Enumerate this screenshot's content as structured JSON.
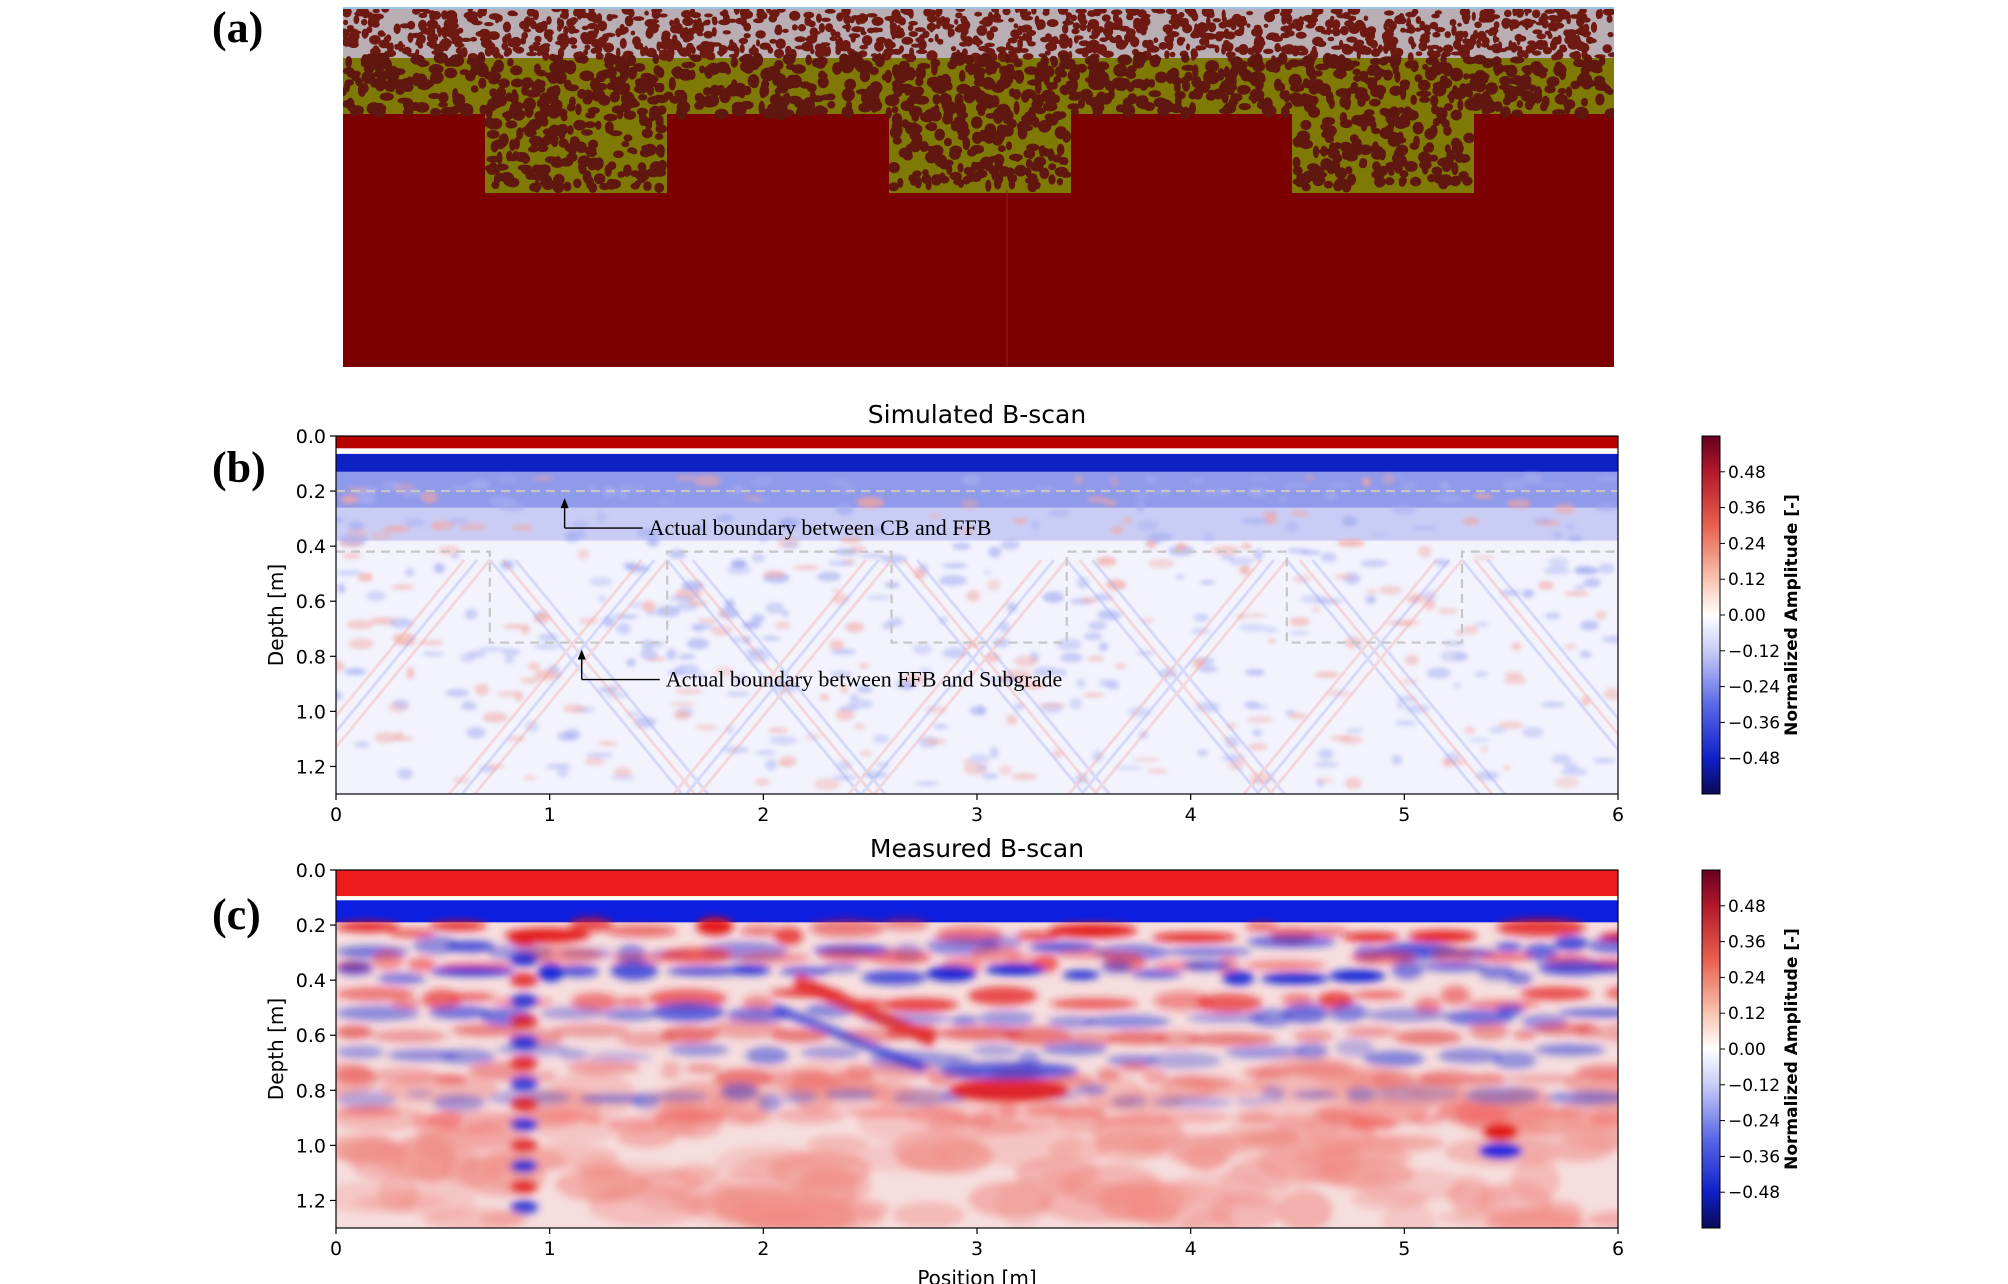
{
  "panels": {
    "a": {
      "label": "(a)"
    },
    "b": {
      "label": "(b)"
    },
    "c": {
      "label": "(c)"
    }
  },
  "colors": {
    "cb_gravel_bg": "#b9aeb4",
    "cb_particle": "#6e1a12",
    "ffb_bg": "#7f7a05",
    "ffb_particle": "#5f1710",
    "subgrade": "#7d0000",
    "positive": "#b40000",
    "negative": "#0b1fbf"
  },
  "model_section": {
    "layers": [
      "CB",
      "FFB",
      "Subgrade"
    ],
    "width_m": 6.0,
    "surface_layer_bottom_m": 0.2,
    "ffb_bottom_m": 0.42,
    "trench_bottom_m": 0.75,
    "trenches_m": [
      [
        0.7,
        1.55
      ],
      [
        2.6,
        3.45
      ],
      [
        4.5,
        5.35
      ]
    ]
  },
  "chart_data": [
    {
      "id": "simulated",
      "type": "heatmap",
      "title": "Simulated B-scan",
      "xlabel": "",
      "ylabel": "Depth [m]",
      "xlim": [
        0,
        6
      ],
      "ylim": [
        1.3,
        0.0
      ],
      "xticks": [
        "0",
        "1",
        "2",
        "3",
        "4",
        "5",
        "6"
      ],
      "yticks": [
        "0.0",
        "0.2",
        "0.4",
        "0.6",
        "0.8",
        "1.0",
        "1.2"
      ],
      "colorbar": {
        "label": "Normalized Amplitude [-]",
        "range": [
          -0.6,
          0.6
        ],
        "ticks": [
          "0.48",
          "0.36",
          "0.24",
          "0.12",
          "0.00",
          "−0.12",
          "−0.24",
          "−0.36",
          "−0.48"
        ]
      },
      "annotations": [
        {
          "text": "Actual boundary between CB and FFB",
          "x": 1.07,
          "y": 0.2
        },
        {
          "text": "Actual boundary between FFB and Subgrade",
          "x": 1.15,
          "y": 0.75
        }
      ],
      "boundary_lines": {
        "cb_ffb_depth": 0.2,
        "ffb_top_depth": 0.42,
        "trench_bottom_depth": 0.75,
        "trenches": [
          [
            0.72,
            1.55
          ],
          [
            2.6,
            3.42
          ],
          [
            4.45,
            5.27
          ]
        ]
      }
    },
    {
      "id": "measured",
      "type": "heatmap",
      "title": "Measured B-scan",
      "xlabel": "Position [m]",
      "ylabel": "Depth [m]",
      "xlim": [
        0,
        6
      ],
      "ylim": [
        1.3,
        0.0
      ],
      "xticks": [
        "0",
        "1",
        "2",
        "3",
        "4",
        "5",
        "6"
      ],
      "yticks": [
        "0.0",
        "0.2",
        "0.4",
        "0.6",
        "0.8",
        "1.0",
        "1.2"
      ],
      "colorbar": {
        "label": "Normalized Amplitude [-]",
        "range": [
          -0.6,
          0.6
        ],
        "ticks": [
          "0.48",
          "0.36",
          "0.24",
          "0.12",
          "0.00",
          "−0.12",
          "−0.24",
          "−0.36",
          "−0.48"
        ]
      }
    }
  ]
}
